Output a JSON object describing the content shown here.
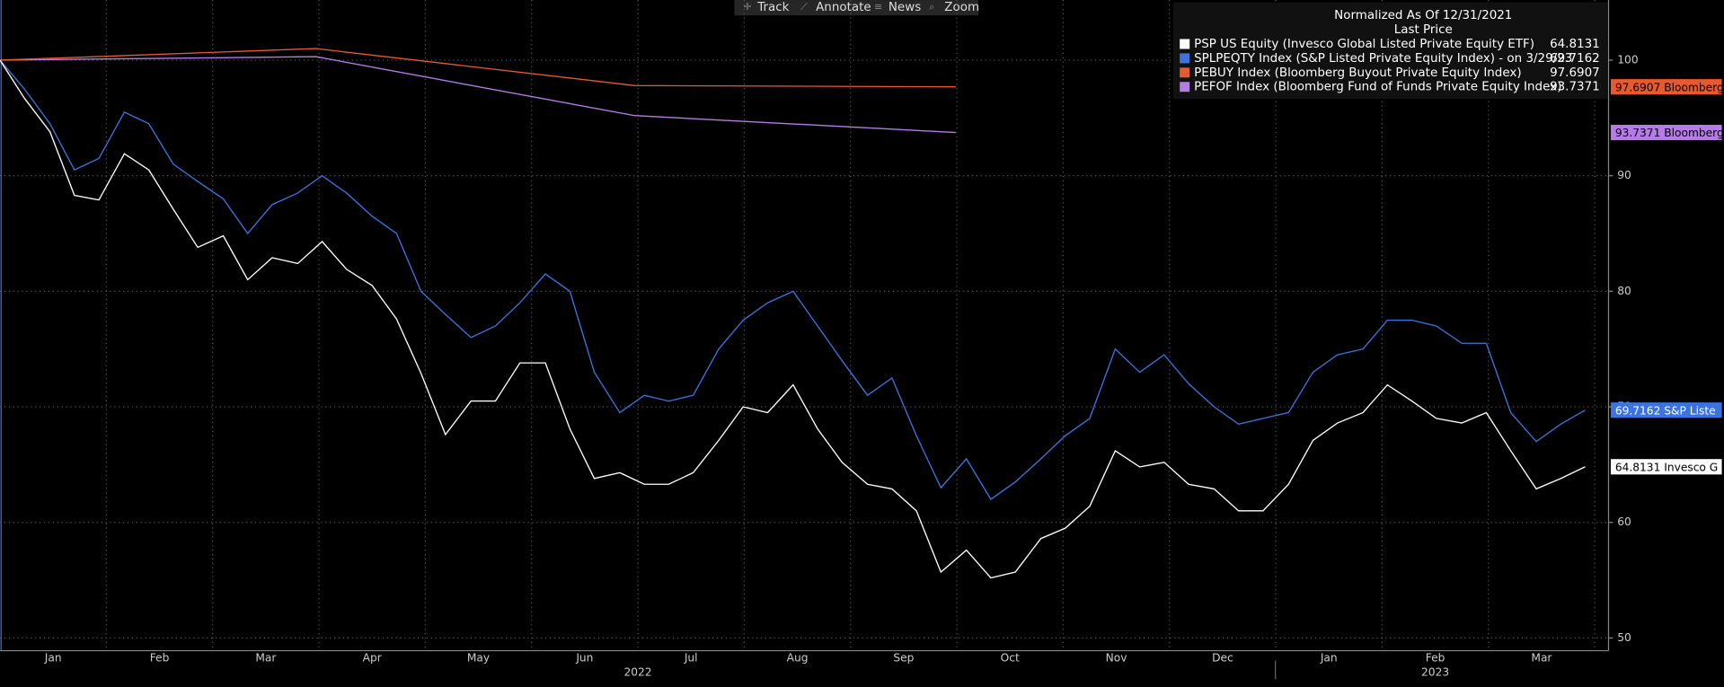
{
  "toolbar": [
    "Track",
    "Annotate",
    "News",
    "Zoom"
  ],
  "chart_data": {
    "type": "line",
    "legend_title": "Normalized As Of 12/31/2021",
    "legend_subtitle": "Last Price",
    "legend": "upper right",
    "grid": true,
    "xlim": [
      0,
      15.13
    ],
    "xticks": [
      {
        "value": 0.5,
        "label": "Jan"
      },
      {
        "value": 1.5,
        "label": "Feb"
      },
      {
        "value": 2.5,
        "label": "Mar"
      },
      {
        "value": 3.5,
        "label": "Apr"
      },
      {
        "value": 4.5,
        "label": "May"
      },
      {
        "value": 5.5,
        "label": "Jun"
      },
      {
        "value": 6.5,
        "label": "Jul"
      },
      {
        "value": 7.5,
        "label": "Aug"
      },
      {
        "value": 8.5,
        "label": "Sep"
      },
      {
        "value": 9.5,
        "label": "Oct"
      },
      {
        "value": 10.5,
        "label": "Nov"
      },
      {
        "value": 11.5,
        "label": "Dec"
      },
      {
        "value": 12.5,
        "label": "Jan"
      },
      {
        "value": 13.5,
        "label": "Feb"
      },
      {
        "value": 14.5,
        "label": "Mar"
      }
    ],
    "years": [
      {
        "value": 6,
        "label": "2022"
      },
      {
        "value": 13.5,
        "label": "2023"
      }
    ],
    "ylim": [
      48.9,
      105.2
    ],
    "yticks": [
      50,
      60,
      70,
      80,
      90,
      100
    ],
    "series": [
      {
        "name": "PSP US Equity (Invesco Global Listed Private Equity ETF)",
        "badge": "Invesco G",
        "color": "#ffffff",
        "x": [
          0,
          0.23,
          0.47,
          0.7,
          0.93,
          1.17,
          1.4,
          1.63,
          1.86,
          2.1,
          2.33,
          2.56,
          2.8,
          3.03,
          3.26,
          3.5,
          3.73,
          3.96,
          4.19,
          4.43,
          4.66,
          4.89,
          5.13,
          5.36,
          5.59,
          5.83,
          6.06,
          6.29,
          6.52,
          6.76,
          6.99,
          7.22,
          7.46,
          7.69,
          7.92,
          8.16,
          8.39,
          8.62,
          8.85,
          9.09,
          9.32,
          9.55,
          9.79,
          10.02,
          10.25,
          10.49,
          10.72,
          10.95,
          11.18,
          11.42,
          11.65,
          11.88,
          12.12,
          12.35,
          12.58,
          12.82,
          13.05,
          13.28,
          13.51,
          13.75,
          13.98,
          14.21,
          14.45,
          14.68,
          14.91
        ],
        "values": [
          100,
          96.7,
          93.8,
          88.3,
          87.9,
          91.9,
          90.5,
          87.1,
          83.8,
          84.8,
          81,
          82.9,
          82.4,
          84.3,
          81.9,
          80.5,
          77.6,
          72.9,
          67.6,
          70.5,
          70.5,
          73.8,
          73.8,
          68.1,
          63.8,
          64.3,
          63.3,
          63.3,
          64.3,
          67.1,
          70,
          69.5,
          71.9,
          68.1,
          65.2,
          63.3,
          62.9,
          61,
          55.7,
          57.6,
          55.2,
          55.7,
          58.6,
          59.5,
          61.4,
          66.2,
          64.8,
          65.2,
          63.3,
          62.9,
          61,
          61,
          63.3,
          67.1,
          68.6,
          69.5,
          71.9,
          70.5,
          69,
          68.6,
          69.5,
          66.2,
          62.9,
          63.8,
          64.8131
        ]
      },
      {
        "name": "SPLPEQTY Index (S&P Listed Private Equity Index) - on 3/29/23",
        "badge": "S&P Liste",
        "color": "#3b74e0",
        "x": [
          0,
          0.23,
          0.47,
          0.7,
          0.93,
          1.17,
          1.4,
          1.63,
          1.86,
          2.1,
          2.33,
          2.56,
          2.8,
          3.03,
          3.26,
          3.5,
          3.73,
          3.96,
          4.19,
          4.43,
          4.66,
          4.89,
          5.13,
          5.36,
          5.59,
          5.83,
          6.06,
          6.29,
          6.52,
          6.76,
          6.99,
          7.22,
          7.46,
          7.69,
          7.92,
          8.16,
          8.39,
          8.62,
          8.85,
          9.09,
          9.32,
          9.55,
          9.79,
          10.02,
          10.25,
          10.49,
          10.72,
          10.95,
          11.18,
          11.42,
          11.65,
          11.88,
          12.12,
          12.35,
          12.58,
          12.82,
          13.05,
          13.28,
          13.51,
          13.75,
          13.98,
          14.21,
          14.45,
          14.68,
          14.91
        ],
        "values": [
          100,
          97.5,
          94.5,
          90.5,
          91.5,
          95.5,
          94.5,
          91,
          89.5,
          88,
          85,
          87.5,
          88.5,
          90,
          88.5,
          86.5,
          85,
          80,
          78,
          76,
          77,
          79,
          81.5,
          80,
          73,
          69.5,
          71,
          70.5,
          71,
          75,
          77.5,
          79,
          80,
          77,
          74,
          71,
          72.5,
          67.5,
          63,
          65.5,
          62,
          63.5,
          65.5,
          67.5,
          69,
          75,
          73,
          74.5,
          72,
          70,
          68.5,
          69,
          69.5,
          73,
          74.5,
          75,
          77.5,
          77.5,
          77,
          75.5,
          75.5,
          69.5,
          67,
          68.5,
          69.7162
        ]
      },
      {
        "name": "PEBUY Index (Bloomberg Buyout Private Equity Index)",
        "badge": "Bloomberg",
        "color": "#e8592b",
        "x": [
          0,
          2.97,
          5.97,
          8.99
        ],
        "values": [
          100,
          101,
          97.8,
          97.6907
        ]
      },
      {
        "name": "PEFOF Index (Bloomberg Fund of Funds Private Equity Index)",
        "badge": "Bloomberg",
        "color": "#b57be6",
        "x": [
          0,
          2.97,
          5.97,
          8.99
        ],
        "values": [
          100,
          100.3,
          95.2,
          93.7371
        ]
      }
    ]
  }
}
